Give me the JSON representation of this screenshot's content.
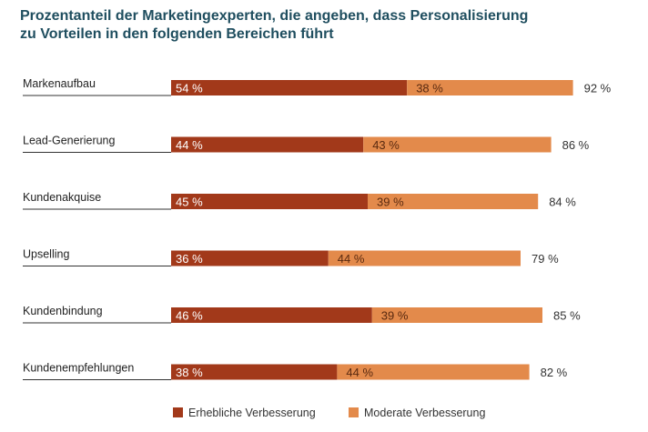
{
  "title_lines": [
    "Prozentanteil der Marketingexperten, die angeben, dass Personalisierung",
    "zu Vorteilen in den folgenden Bereichen führt"
  ],
  "colors": {
    "series_1": "#a2391a",
    "series_2": "#e38a4b",
    "title": "#1f4e5f",
    "label_on_dark": "#ffffff",
    "label_on_light": "#5a2a10"
  },
  "chart_data": {
    "type": "bar",
    "orientation": "horizontal",
    "stacked": true,
    "title": "Prozentanteil der Marketingexperten, die angeben, dass Personalisierung zu Vorteilen in den folgenden Bereichen führt",
    "categories": [
      "Markenaufbau",
      "Lead-Generierung",
      "Kundenakquise",
      "Upselling",
      "Kundenbindung",
      "Kundenempfehlungen"
    ],
    "series": [
      {
        "name": "Erhebliche Verbesserung",
        "values": [
          54,
          44,
          45,
          36,
          46,
          38
        ],
        "labels": [
          "54 %",
          "44 %",
          "45 %",
          "36 %",
          "46 %",
          "38 %"
        ]
      },
      {
        "name": "Moderate Verbesserung",
        "values": [
          38,
          43,
          39,
          44,
          39,
          44
        ],
        "labels": [
          "38 %",
          "43 %",
          "39 %",
          "44 %",
          "39 %",
          "44 %"
        ]
      }
    ],
    "totals": [
      92,
      86,
      84,
      79,
      85,
      82
    ],
    "total_labels": [
      "92 %",
      "86 %",
      "84 %",
      "79 %",
      "85 %",
      "82 %"
    ],
    "legend_position": "bottom",
    "grid": false
  }
}
